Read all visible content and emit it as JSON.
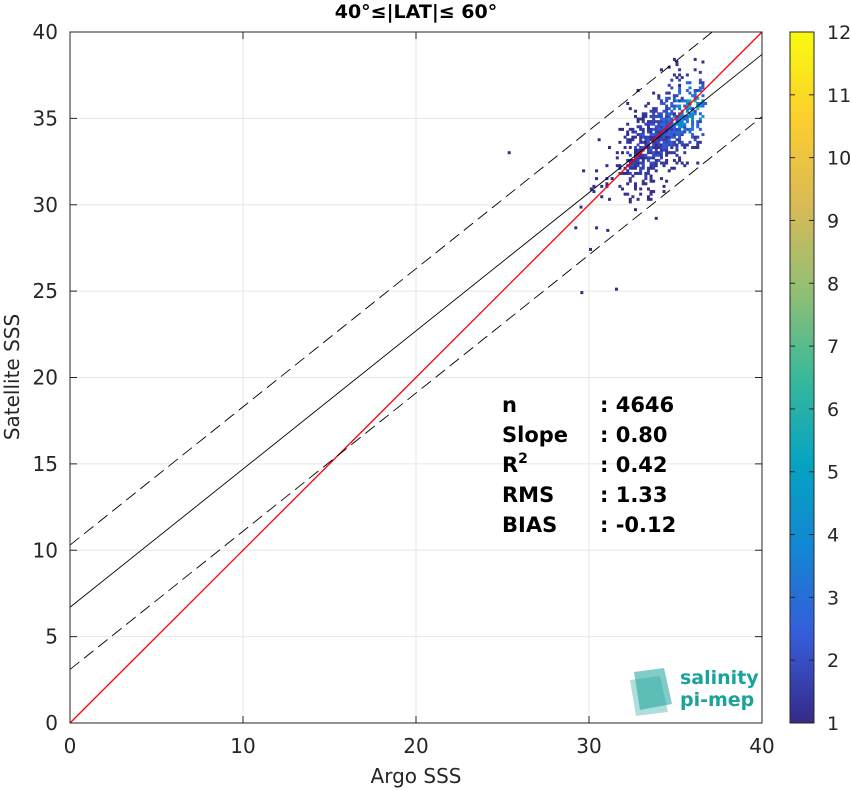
{
  "chart_data": {
    "type": "heatmap",
    "title": "40°≤|LAT|≤ 60°",
    "xlabel": "Argo SSS",
    "ylabel": "Satellite SSS",
    "xlim": [
      0,
      40
    ],
    "ylim": [
      0,
      40
    ],
    "x_ticks": [
      "0",
      "10",
      "20",
      "30",
      "40"
    ],
    "y_ticks": [
      "0",
      "5",
      "10",
      "15",
      "20",
      "25",
      "30",
      "35",
      "40"
    ],
    "grid": true,
    "colorbar": {
      "range": [
        1,
        12
      ],
      "ticks": [
        "1",
        "2",
        "3",
        "4",
        "5",
        "6",
        "7",
        "8",
        "9",
        "10",
        "11",
        "12"
      ],
      "colormap": "parula"
    },
    "lines": [
      {
        "role": "one-to-one",
        "style": "solid",
        "color": "#ff0000",
        "points": [
          [
            0,
            0
          ],
          [
            40,
            40
          ]
        ]
      },
      {
        "role": "fit",
        "style": "solid",
        "color": "#000000",
        "points": [
          [
            0,
            6.7
          ],
          [
            40,
            38.7
          ]
        ]
      },
      {
        "role": "fit-upper",
        "style": "dashed",
        "color": "#000000",
        "points": [
          [
            0,
            10.3
          ],
          [
            40,
            42.3
          ]
        ]
      },
      {
        "role": "fit-lower",
        "style": "dashed",
        "color": "#000000",
        "points": [
          [
            0,
            3.1
          ],
          [
            40,
            35.1
          ]
        ]
      }
    ],
    "density_summary": {
      "x_range": [
        29,
        36.7
      ],
      "y_range": [
        25,
        39
      ],
      "peak_near": [
        35.8,
        35.5
      ],
      "peak_count": 6
    },
    "stats": [
      {
        "label": "n",
        "value": ": 4646"
      },
      {
        "label": "Slope",
        "value": ": 0.80"
      },
      {
        "label": "R",
        "sup": "2",
        "value": ": 0.42"
      },
      {
        "label": "RMS",
        "value": ": 1.33"
      },
      {
        "label": "BIAS",
        "value": ": -0.12"
      }
    ],
    "logo": {
      "line1": "salinity",
      "line2": "pi-mep",
      "color": "#1aa39a"
    }
  }
}
